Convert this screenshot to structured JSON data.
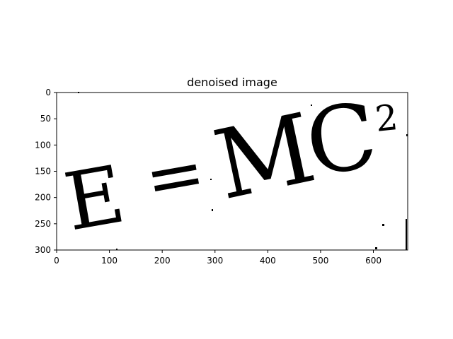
{
  "figure": {
    "title": "denoised image",
    "x_ticks": [
      "0",
      "100",
      "200",
      "300",
      "400",
      "500",
      "600"
    ],
    "y_ticks": [
      "0",
      "50",
      "100",
      "150",
      "200",
      "250",
      "300"
    ],
    "image_extent": {
      "width": 665,
      "height": 300
    }
  },
  "image": {
    "glyph_e": "E",
    "glyph_equals": "=",
    "glyph_m": "M",
    "glyph_c": "C",
    "glyph_exponent": "2",
    "ink_color": "#000000",
    "background_color": "#ffffff"
  }
}
